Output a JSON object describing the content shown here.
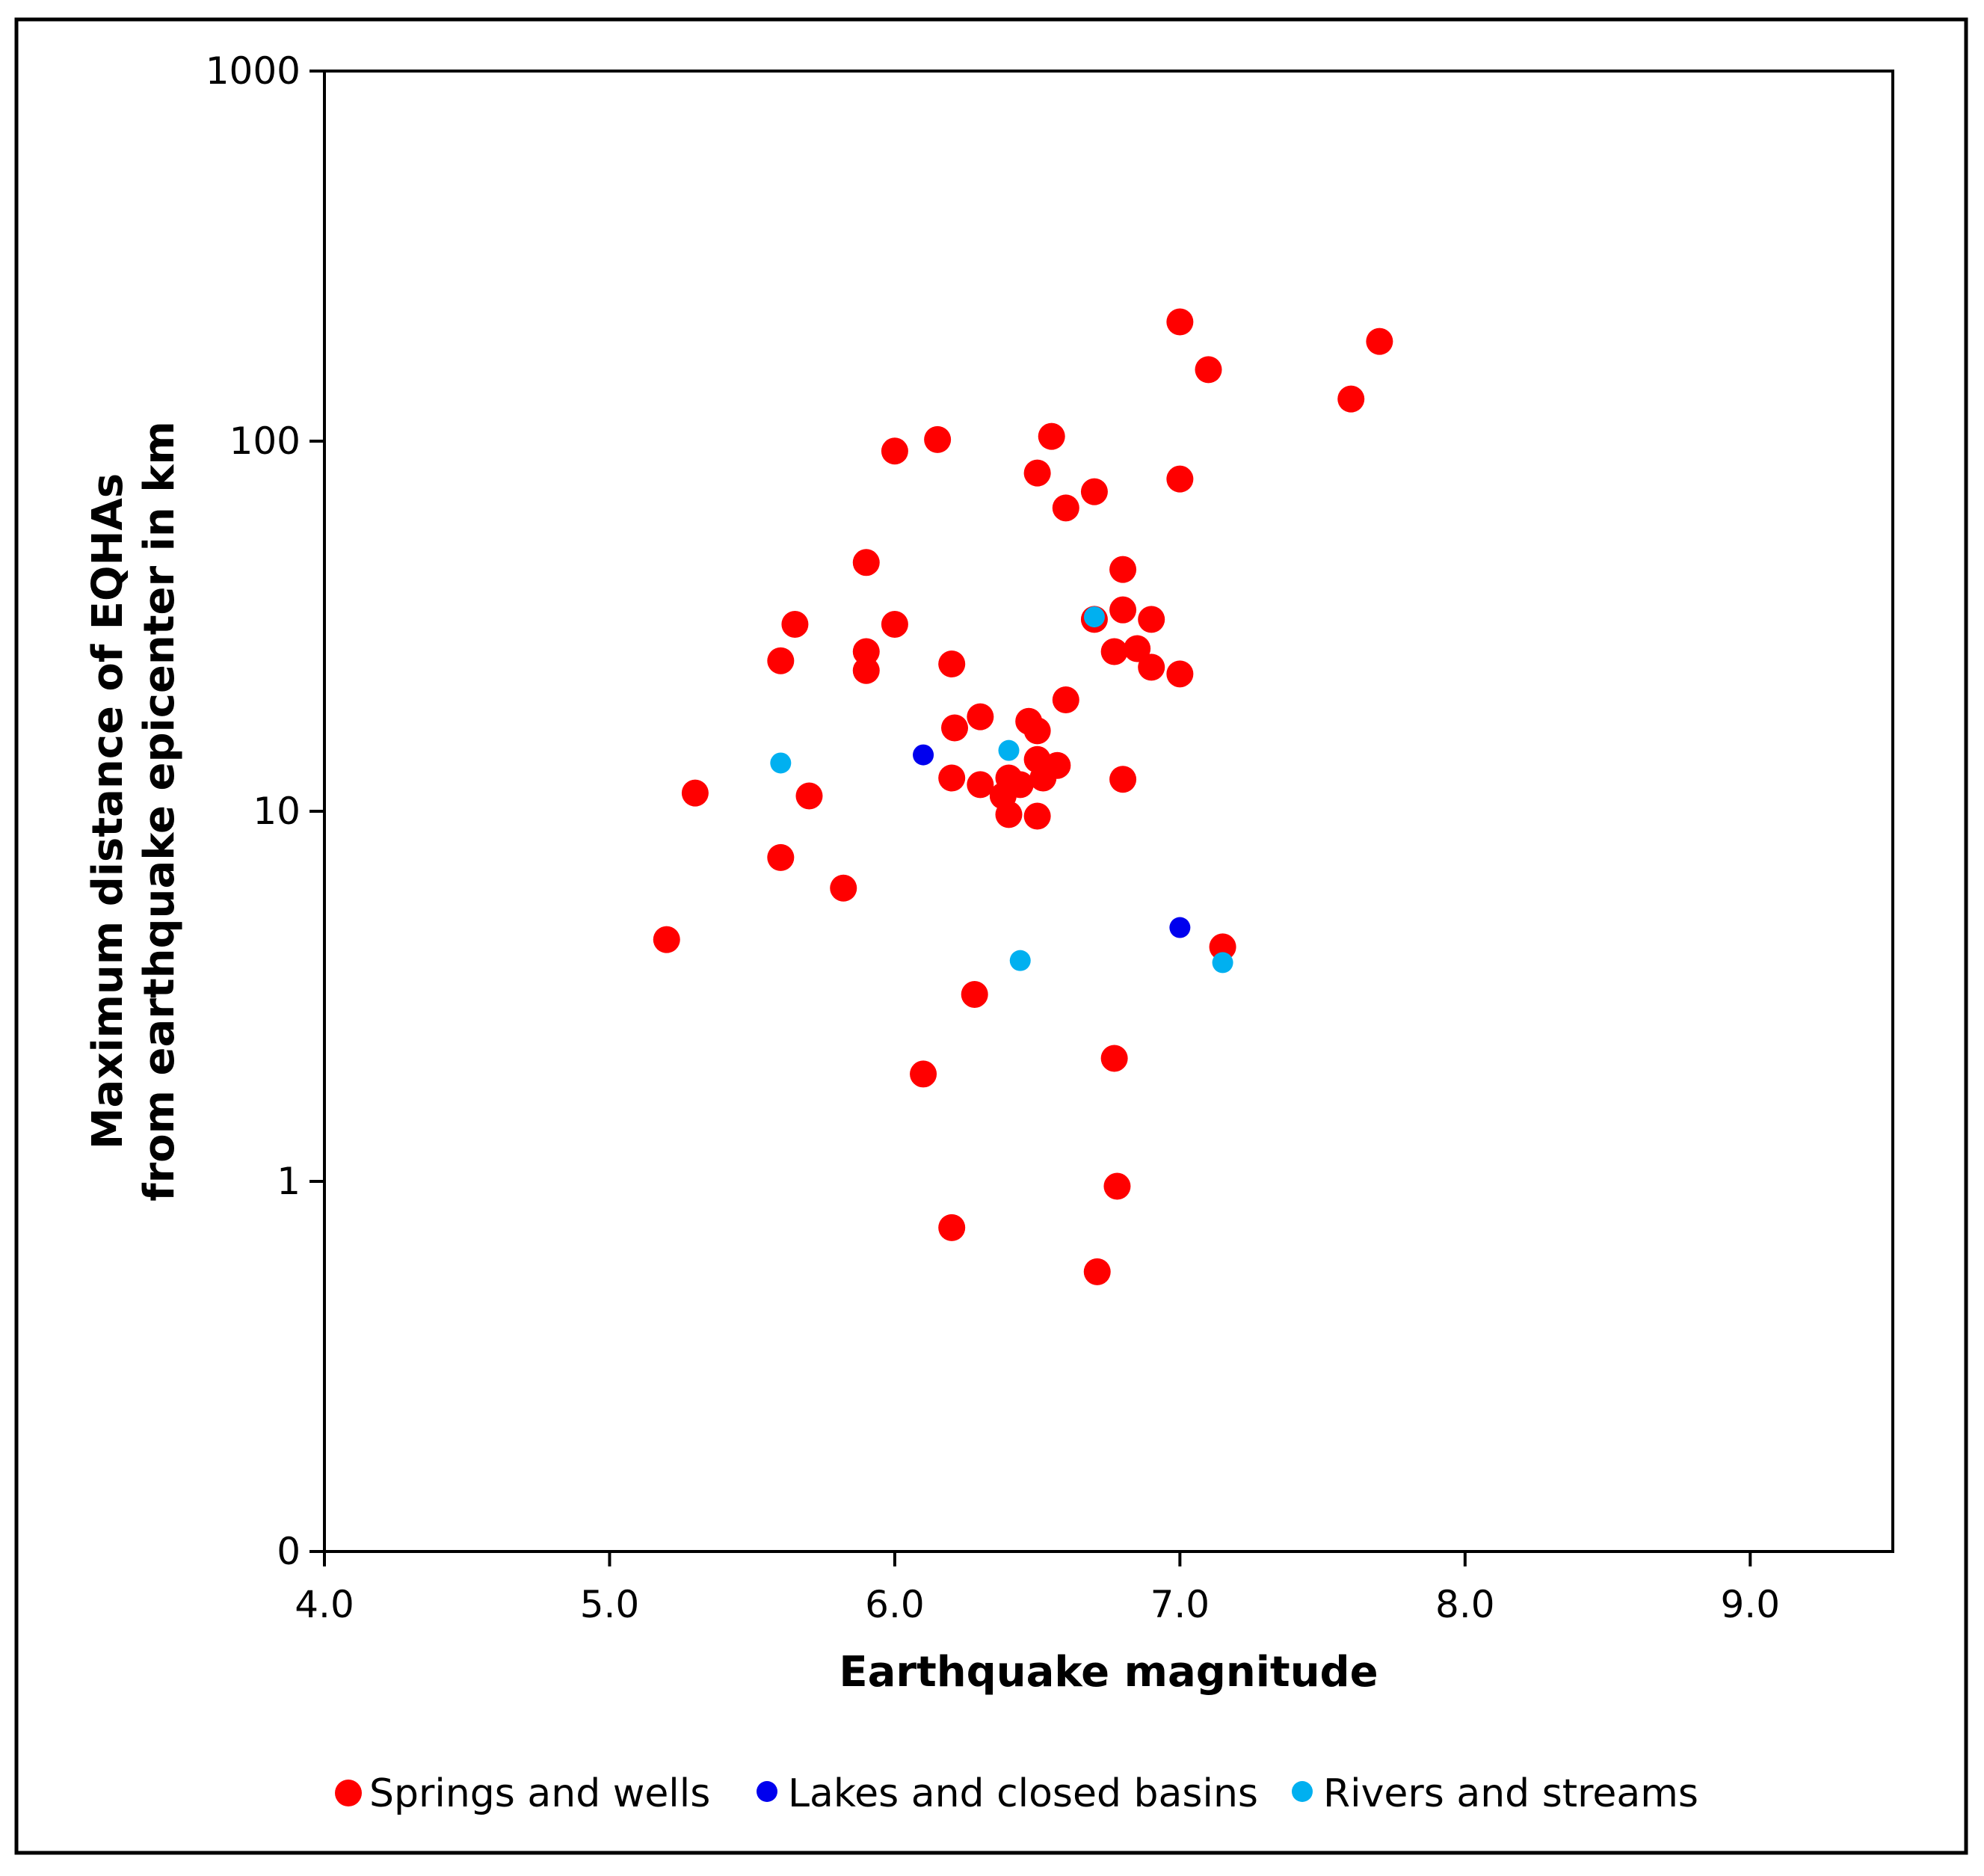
{
  "chart_data": {
    "type": "scatter",
    "title": "",
    "xlabel": "Earthquake magnitude",
    "ylabel_lines": [
      "Maximum distance of EQHAs",
      "from earthquake epicenter in km"
    ],
    "xlim": [
      4.0,
      9.5
    ],
    "x_ticks": [
      4.0,
      5.0,
      6.0,
      7.0,
      8.0,
      9.0
    ],
    "x_tick_labels": [
      "4.0",
      "5.0",
      "6.0",
      "7.0",
      "8.0",
      "9.0"
    ],
    "y_scale": "log",
    "ylim": [
      0.1,
      1000
    ],
    "y_ticks": [
      0.1,
      1,
      10,
      100,
      1000
    ],
    "y_tick_labels": [
      "0",
      "1",
      "10",
      "100",
      "1000"
    ],
    "legend_position": "bottom",
    "series": [
      {
        "name": "Springs and wells",
        "color": "#ff0000",
        "marker": "large",
        "points": [
          [
            5.2,
            4.5
          ],
          [
            5.3,
            11.2
          ],
          [
            5.6,
            25.5
          ],
          [
            5.6,
            7.5
          ],
          [
            5.65,
            32.0
          ],
          [
            5.7,
            11.0
          ],
          [
            5.82,
            6.2
          ],
          [
            5.9,
            47.0
          ],
          [
            5.9,
            27.0
          ],
          [
            5.9,
            24.0
          ],
          [
            6.0,
            94.0
          ],
          [
            6.0,
            32.0
          ],
          [
            6.1,
            1.95
          ],
          [
            6.15,
            101.0
          ],
          [
            6.2,
            25.0
          ],
          [
            6.21,
            16.8
          ],
          [
            6.2,
            12.3
          ],
          [
            6.2,
            0.75
          ],
          [
            6.28,
            3.2
          ],
          [
            6.3,
            18.0
          ],
          [
            6.3,
            11.8
          ],
          [
            6.38,
            11.0
          ],
          [
            6.4,
            12.3
          ],
          [
            6.4,
            9.8
          ],
          [
            6.44,
            11.8
          ],
          [
            6.47,
            17.5
          ],
          [
            6.5,
            16.5
          ],
          [
            6.5,
            13.8
          ],
          [
            6.5,
            9.7
          ],
          [
            6.52,
            12.3
          ],
          [
            6.57,
            13.3
          ],
          [
            6.5,
            82.0
          ],
          [
            6.55,
            103.0
          ],
          [
            6.6,
            66.0
          ],
          [
            6.6,
            20.0
          ],
          [
            6.7,
            73.0
          ],
          [
            6.7,
            33.0
          ],
          [
            6.71,
            0.57
          ],
          [
            6.77,
            27.0
          ],
          [
            6.77,
            2.15
          ],
          [
            6.78,
            0.97
          ],
          [
            6.8,
            45.0
          ],
          [
            6.8,
            35.0
          ],
          [
            6.8,
            12.2
          ],
          [
            6.85,
            27.5
          ],
          [
            6.9,
            33.0
          ],
          [
            6.9,
            24.5
          ],
          [
            7.0,
            210.0
          ],
          [
            7.0,
            79.0
          ],
          [
            7.0,
            23.5
          ],
          [
            7.1,
            156.0
          ],
          [
            7.15,
            4.3
          ],
          [
            7.6,
            130.0
          ],
          [
            7.7,
            186.0
          ]
        ]
      },
      {
        "name": "Lakes and closed basins",
        "color": "#0000ee",
        "marker": "small",
        "points": [
          [
            6.1,
            14.2
          ],
          [
            7.0,
            4.85
          ]
        ]
      },
      {
        "name": "Rivers and streams",
        "color": "#00b0f0",
        "marker": "small",
        "points": [
          [
            5.6,
            13.5
          ],
          [
            6.4,
            14.6
          ],
          [
            6.7,
            33.5
          ],
          [
            6.44,
            3.95
          ],
          [
            7.15,
            3.9
          ]
        ]
      }
    ]
  }
}
